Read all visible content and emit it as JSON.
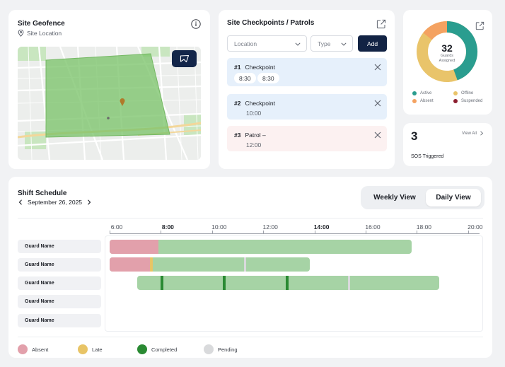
{
  "geofence": {
    "title": "Site Geofence",
    "subtitle": "Site Location"
  },
  "checkpoints": {
    "title": "Site Checkpoints / Patrols",
    "location_placeholder": "Location",
    "type_placeholder": "Type",
    "add_label": "Add",
    "items": [
      {
        "num": "#1",
        "name": "Checkpoint",
        "times": [
          "8:30",
          "8:30"
        ],
        "color": "#e6f0fb"
      },
      {
        "num": "#2",
        "name": "Checkpoint",
        "times": [
          "10:00"
        ],
        "color": "#e6f0fb"
      },
      {
        "num": "#3",
        "name": "Patrol –",
        "times": [
          "12:00"
        ],
        "color": "#fcf1f1"
      }
    ]
  },
  "guards": {
    "count": "32",
    "label_line1": "Guards",
    "label_line2": "Assigned",
    "legend": [
      {
        "label": "Active",
        "color": "#2a9d8f"
      },
      {
        "label": "Offline",
        "color": "#e9c46a"
      },
      {
        "label": "Absent",
        "color": "#f4a261"
      },
      {
        "label": "Suspended",
        "color": "#8b1e2f"
      }
    ]
  },
  "sos": {
    "count": "3",
    "label": "SOS Triggered",
    "view_all": "View All"
  },
  "schedule": {
    "title": "Shift Schedule",
    "date": "September 26, 2025",
    "weekly_view": "Weekly View",
    "daily_view": "Daily View",
    "ticks": [
      {
        "label": "6:00",
        "bold": false
      },
      {
        "label": "8:00",
        "bold": true
      },
      {
        "label": "10:00",
        "bold": false
      },
      {
        "label": "12:00",
        "bold": false
      },
      {
        "label": "14:00",
        "bold": true
      },
      {
        "label": "16:00",
        "bold": false
      },
      {
        "label": "18:00",
        "bold": false
      },
      {
        "label": "20:00",
        "bold": false
      }
    ],
    "rows": [
      {
        "guard": "Guard Name"
      },
      {
        "guard": "Guard Name"
      },
      {
        "guard": "Guard Name"
      },
      {
        "guard": "Guard Name"
      },
      {
        "guard": "Guard Name"
      }
    ],
    "legend": [
      {
        "label": "Absent",
        "color": "#e2a0ab"
      },
      {
        "label": "Late",
        "color": "#e8c466"
      },
      {
        "label": "Completed",
        "color": "#2a8a33"
      },
      {
        "label": "Pending",
        "color": "#d9dadc"
      }
    ]
  }
}
